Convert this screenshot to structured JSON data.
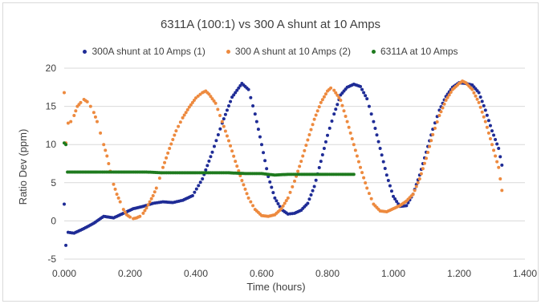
{
  "chart_data": {
    "type": "scatter",
    "title": "6311A (100:1)  vs 300 A shunt at 10 Amps",
    "xlabel": "Time (hours)",
    "ylabel": "Ratio Dev (ppm)",
    "xlim": [
      0,
      1.4
    ],
    "ylim": [
      -5,
      20
    ],
    "x_ticks": [
      "0.000",
      "0.200",
      "0.400",
      "0.600",
      "0.800",
      "1.000",
      "1.200",
      "1.400"
    ],
    "y_ticks": [
      "-5",
      "0",
      "5",
      "10",
      "15",
      "20"
    ],
    "grid": "horizontal",
    "legend_position": "top",
    "series": [
      {
        "name": "300A shunt at 10 Amps (1)",
        "color": "#1f2c96",
        "points": [
          [
            0.0,
            2.2
          ],
          [
            0.005,
            -3.2
          ],
          [
            0.012,
            -1.5
          ],
          [
            0.03,
            -1.6
          ],
          [
            0.06,
            -1.0
          ],
          [
            0.09,
            -0.3
          ],
          [
            0.12,
            0.6
          ],
          [
            0.15,
            0.4
          ],
          [
            0.18,
            1.0
          ],
          [
            0.21,
            1.6
          ],
          [
            0.24,
            1.9
          ],
          [
            0.27,
            2.3
          ],
          [
            0.3,
            2.5
          ],
          [
            0.33,
            2.4
          ],
          [
            0.36,
            2.7
          ],
          [
            0.39,
            3.3
          ],
          [
            0.42,
            5.5
          ],
          [
            0.45,
            9.0
          ],
          [
            0.48,
            12.8
          ],
          [
            0.51,
            16.2
          ],
          [
            0.54,
            18.0
          ],
          [
            0.56,
            17.2
          ],
          [
            0.58,
            14.0
          ],
          [
            0.6,
            10.0
          ],
          [
            0.62,
            5.8
          ],
          [
            0.64,
            3.0
          ],
          [
            0.66,
            1.5
          ],
          [
            0.68,
            0.9
          ],
          [
            0.7,
            1.0
          ],
          [
            0.72,
            1.4
          ],
          [
            0.74,
            2.3
          ],
          [
            0.76,
            4.5
          ],
          [
            0.78,
            7.8
          ],
          [
            0.8,
            11.2
          ],
          [
            0.82,
            14.0
          ],
          [
            0.84,
            16.5
          ],
          [
            0.86,
            17.5
          ],
          [
            0.88,
            17.9
          ],
          [
            0.9,
            17.6
          ],
          [
            0.92,
            16.0
          ],
          [
            0.94,
            13.0
          ],
          [
            0.96,
            9.5
          ],
          [
            0.98,
            6.0
          ],
          [
            1.0,
            3.2
          ],
          [
            1.02,
            1.9
          ],
          [
            1.04,
            2.0
          ],
          [
            1.06,
            3.5
          ],
          [
            1.08,
            6.0
          ],
          [
            1.1,
            9.0
          ],
          [
            1.12,
            12.0
          ],
          [
            1.14,
            14.5
          ],
          [
            1.16,
            16.3
          ],
          [
            1.18,
            17.5
          ],
          [
            1.2,
            18.1
          ],
          [
            1.22,
            18.0
          ],
          [
            1.24,
            17.8
          ],
          [
            1.26,
            16.8
          ],
          [
            1.28,
            14.5
          ],
          [
            1.3,
            11.8
          ],
          [
            1.32,
            9.5
          ],
          [
            1.33,
            7.3
          ]
        ]
      },
      {
        "name": "300 A shunt at 10 Amps (2)",
        "color": "#ed8a3f",
        "points": [
          [
            0.0,
            16.8
          ],
          [
            0.005,
            10.2
          ],
          [
            0.012,
            12.8
          ],
          [
            0.02,
            13.0
          ],
          [
            0.03,
            13.8
          ],
          [
            0.04,
            15.0
          ],
          [
            0.05,
            15.5
          ],
          [
            0.06,
            15.9
          ],
          [
            0.07,
            15.6
          ],
          [
            0.08,
            15.0
          ],
          [
            0.09,
            14.2
          ],
          [
            0.1,
            13.0
          ],
          [
            0.11,
            11.5
          ],
          [
            0.12,
            10.0
          ],
          [
            0.13,
            8.5
          ],
          [
            0.14,
            6.5
          ],
          [
            0.15,
            4.8
          ],
          [
            0.16,
            3.5
          ],
          [
            0.17,
            2.5
          ],
          [
            0.18,
            1.5
          ],
          [
            0.19,
            0.8
          ],
          [
            0.2,
            0.5
          ],
          [
            0.21,
            0.3
          ],
          [
            0.22,
            0.4
          ],
          [
            0.23,
            0.6
          ],
          [
            0.24,
            1.0
          ],
          [
            0.25,
            1.7
          ],
          [
            0.26,
            2.5
          ],
          [
            0.27,
            3.3
          ],
          [
            0.28,
            4.3
          ],
          [
            0.29,
            5.6
          ],
          [
            0.3,
            7.0
          ],
          [
            0.32,
            9.5
          ],
          [
            0.34,
            11.8
          ],
          [
            0.36,
            13.5
          ],
          [
            0.38,
            14.9
          ],
          [
            0.4,
            16.1
          ],
          [
            0.42,
            16.8
          ],
          [
            0.43,
            17.0
          ],
          [
            0.44,
            16.6
          ],
          [
            0.46,
            15.4
          ],
          [
            0.48,
            13.0
          ],
          [
            0.5,
            10.5
          ],
          [
            0.52,
            7.8
          ],
          [
            0.54,
            5.3
          ],
          [
            0.56,
            3.0
          ],
          [
            0.58,
            1.5
          ],
          [
            0.6,
            0.7
          ],
          [
            0.62,
            0.6
          ],
          [
            0.64,
            0.8
          ],
          [
            0.66,
            1.6
          ],
          [
            0.68,
            3.0
          ],
          [
            0.7,
            5.2
          ],
          [
            0.72,
            7.8
          ],
          [
            0.74,
            10.6
          ],
          [
            0.76,
            13.3
          ],
          [
            0.78,
            15.5
          ],
          [
            0.8,
            17.0
          ],
          [
            0.81,
            17.4
          ],
          [
            0.82,
            17.1
          ],
          [
            0.84,
            15.8
          ],
          [
            0.86,
            13.0
          ],
          [
            0.88,
            10.0
          ],
          [
            0.9,
            7.0
          ],
          [
            0.92,
            4.3
          ],
          [
            0.94,
            2.2
          ],
          [
            0.96,
            1.3
          ],
          [
            0.98,
            1.2
          ],
          [
            1.0,
            1.6
          ],
          [
            1.02,
            2.0
          ],
          [
            1.04,
            2.6
          ],
          [
            1.06,
            3.5
          ],
          [
            1.08,
            5.5
          ],
          [
            1.1,
            8.2
          ],
          [
            1.12,
            11.3
          ],
          [
            1.14,
            13.8
          ],
          [
            1.16,
            15.8
          ],
          [
            1.18,
            17.2
          ],
          [
            1.2,
            18.0
          ],
          [
            1.21,
            18.3
          ],
          [
            1.22,
            18.1
          ],
          [
            1.24,
            17.2
          ],
          [
            1.26,
            15.5
          ],
          [
            1.28,
            13.0
          ],
          [
            1.3,
            10.0
          ],
          [
            1.32,
            7.0
          ],
          [
            1.33,
            4.0
          ]
        ]
      },
      {
        "name": "6311A at 10 Amps",
        "color": "#1e7a1e",
        "points": [
          [
            0.0,
            10.2
          ],
          [
            0.005,
            10.0
          ],
          [
            0.01,
            6.4
          ],
          [
            0.05,
            6.4
          ],
          [
            0.1,
            6.4
          ],
          [
            0.15,
            6.4
          ],
          [
            0.2,
            6.4
          ],
          [
            0.25,
            6.4
          ],
          [
            0.3,
            6.3
          ],
          [
            0.35,
            6.3
          ],
          [
            0.4,
            6.3
          ],
          [
            0.45,
            6.3
          ],
          [
            0.5,
            6.3
          ],
          [
            0.55,
            6.2
          ],
          [
            0.6,
            6.2
          ],
          [
            0.64,
            6.0
          ],
          [
            0.68,
            6.1
          ],
          [
            0.72,
            6.1
          ],
          [
            0.76,
            6.1
          ],
          [
            0.8,
            6.1
          ],
          [
            0.84,
            6.1
          ],
          [
            0.88,
            6.1
          ]
        ]
      }
    ]
  }
}
